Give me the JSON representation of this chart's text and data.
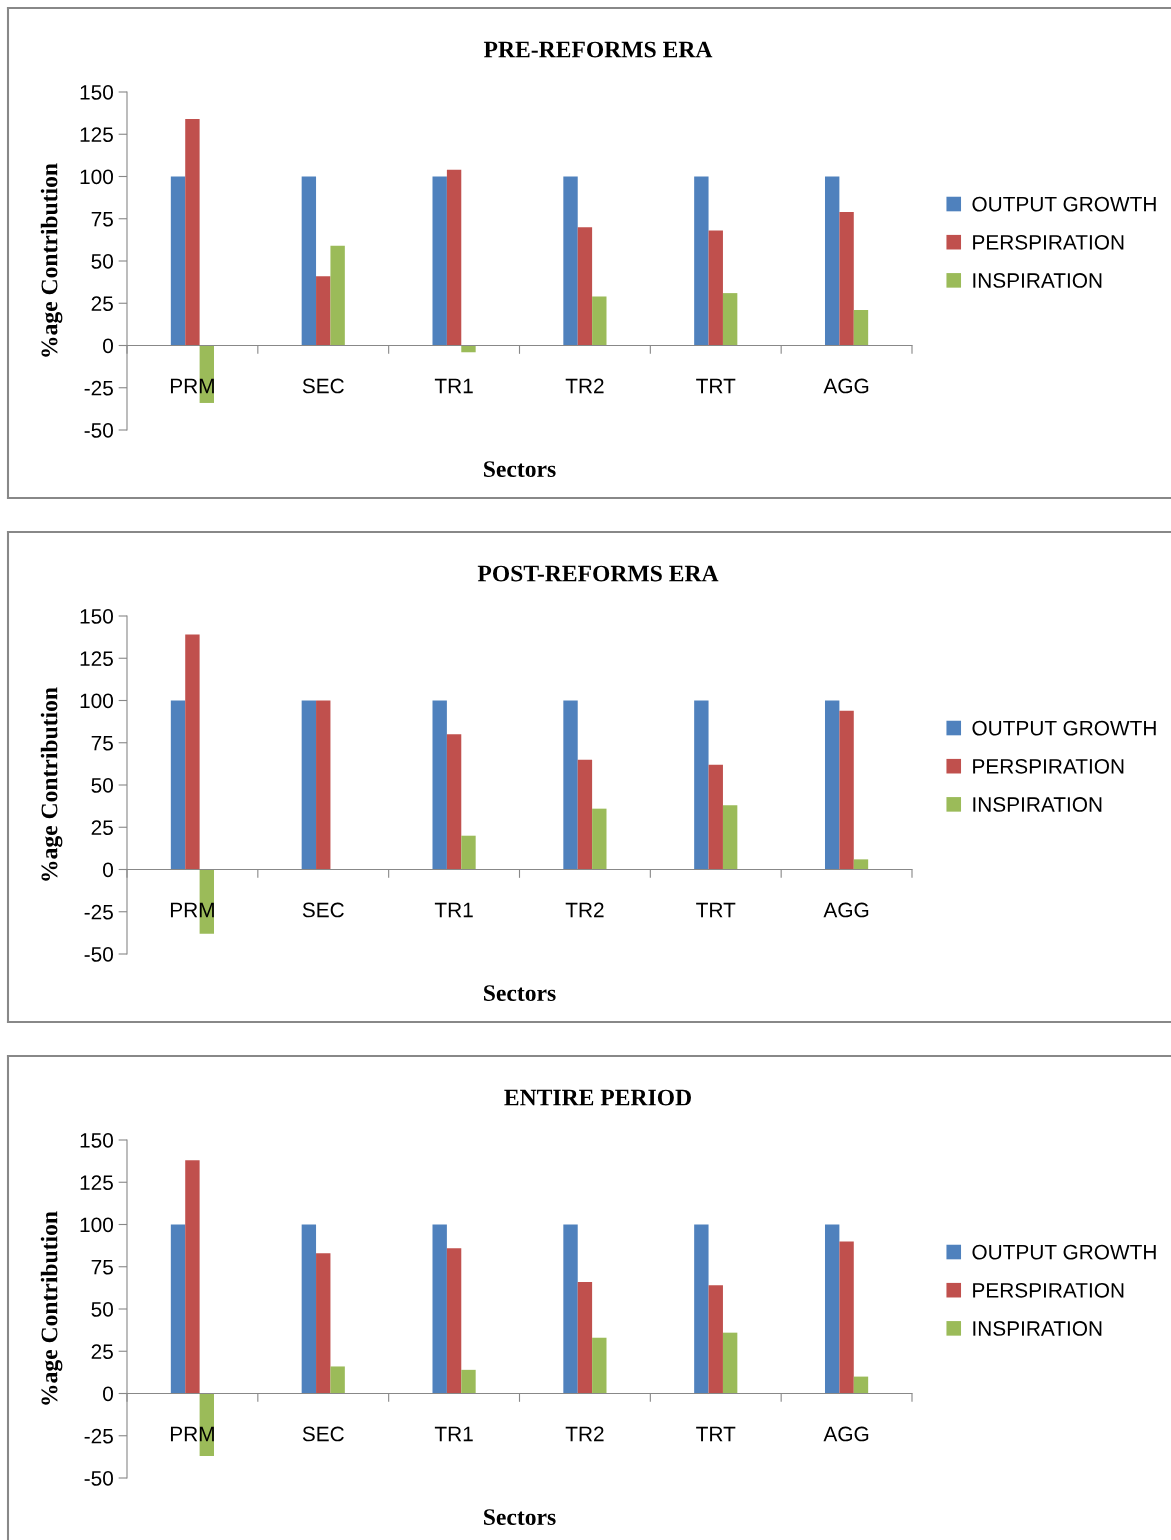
{
  "chart_data": [
    {
      "type": "bar",
      "title": "PRE-REFORMS ERA",
      "xlabel": "Sectors",
      "ylabel": "%age Contribution",
      "categories": [
        "PRM",
        "SEC",
        "TR1",
        "TR2",
        "TRT",
        "AGG"
      ],
      "ylim": [
        -50,
        150
      ],
      "yticks": [
        -50,
        -25,
        0,
        25,
        50,
        75,
        100,
        125,
        150
      ],
      "grid": false,
      "legend": "right",
      "series": [
        {
          "name": "OUTPUT GROWTH",
          "color": "#4f81bd",
          "values": [
            100,
            100,
            100,
            100,
            100,
            100
          ]
        },
        {
          "name": "PERSPIRATION",
          "color": "#c0504d",
          "values": [
            134,
            41,
            104,
            70,
            68,
            79
          ]
        },
        {
          "name": "INSPIRATION",
          "color": "#9bbb59",
          "values": [
            -34,
            59,
            -4,
            29,
            31,
            21
          ]
        }
      ]
    },
    {
      "type": "bar",
      "title": "POST-REFORMS ERA",
      "xlabel": "Sectors",
      "ylabel": "%age Contribution",
      "categories": [
        "PRM",
        "SEC",
        "TR1",
        "TR2",
        "TRT",
        "AGG"
      ],
      "ylim": [
        -50,
        150
      ],
      "yticks": [
        -50,
        -25,
        0,
        25,
        50,
        75,
        100,
        125,
        150
      ],
      "grid": false,
      "legend": "right",
      "series": [
        {
          "name": "OUTPUT GROWTH",
          "color": "#4f81bd",
          "values": [
            100,
            100,
            100,
            100,
            100,
            100
          ]
        },
        {
          "name": "PERSPIRATION",
          "color": "#c0504d",
          "values": [
            139,
            100,
            80,
            65,
            62,
            94
          ]
        },
        {
          "name": "INSPIRATION",
          "color": "#9bbb59",
          "values": [
            -38,
            0,
            20,
            36,
            38,
            6
          ]
        }
      ]
    },
    {
      "type": "bar",
      "title": "ENTIRE PERIOD",
      "xlabel": "Sectors",
      "ylabel": "%age Contribution",
      "categories": [
        "PRM",
        "SEC",
        "TR1",
        "TR2",
        "TRT",
        "AGG"
      ],
      "ylim": [
        -50,
        150
      ],
      "yticks": [
        -50,
        -25,
        0,
        25,
        50,
        75,
        100,
        125,
        150
      ],
      "grid": false,
      "legend": "right",
      "series": [
        {
          "name": "OUTPUT GROWTH",
          "color": "#4f81bd",
          "values": [
            100,
            100,
            100,
            100,
            100,
            100
          ]
        },
        {
          "name": "PERSPIRATION",
          "color": "#c0504d",
          "values": [
            138,
            83,
            86,
            66,
            64,
            90
          ]
        },
        {
          "name": "INSPIRATION",
          "color": "#9bbb59",
          "values": [
            -37,
            16,
            14,
            33,
            36,
            10
          ]
        }
      ]
    }
  ]
}
